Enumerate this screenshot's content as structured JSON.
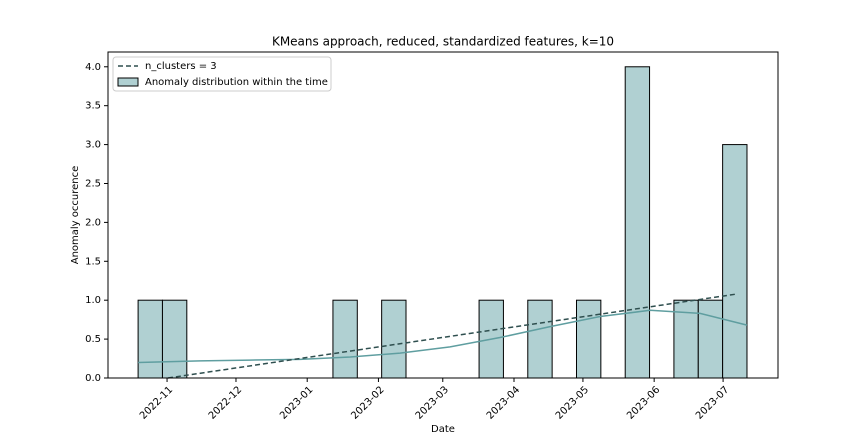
{
  "chart_data": {
    "type": "histogram",
    "title": "KMeans approach, reduced, standardized features, k=10",
    "xlabel": "Date",
    "ylabel": "Anomaly occurence",
    "xlim": [
      19271.3,
      19562.9
    ],
    "ylim": [
      0,
      4.19
    ],
    "xticks": [
      {
        "value": 19297,
        "label": "2022-11"
      },
      {
        "value": 19327,
        "label": "2022-12"
      },
      {
        "value": 19358,
        "label": "2023-01"
      },
      {
        "value": 19389,
        "label": "2023-02"
      },
      {
        "value": 19417,
        "label": "2023-03"
      },
      {
        "value": 19448,
        "label": "2023-04"
      },
      {
        "value": 19478,
        "label": "2023-05"
      },
      {
        "value": 19509,
        "label": "2023-06"
      },
      {
        "value": 19539,
        "label": "2023-07"
      }
    ],
    "yticks": [
      {
        "value": 0,
        "label": "0.0"
      },
      {
        "value": 0.5,
        "label": "0.5"
      },
      {
        "value": 1,
        "label": "1.0"
      },
      {
        "value": 1.5,
        "label": "1.5"
      },
      {
        "value": 2,
        "label": "2.0"
      },
      {
        "value": 2.5,
        "label": "2.5"
      },
      {
        "value": 3,
        "label": "3.0"
      },
      {
        "value": 3.5,
        "label": "3.5"
      },
      {
        "value": 4,
        "label": "4.0"
      }
    ],
    "legend": "upper left",
    "series": [
      {
        "name": "n_clusters = 3",
        "type": "line",
        "color": "#2f4f4f",
        "dashed": true,
        "x": [
          19297.4,
          19545.1
        ],
        "values": [
          0.0,
          1.08
        ]
      },
      {
        "name": "Anomaly distribution within the time",
        "type": "histogram",
        "color": "#b0d0d2",
        "edgecolor": "#000000",
        "bins": [
          19284.4,
          19295.0,
          19305.6,
          19316.2,
          19326.8,
          19337.4,
          19348.0,
          19358.6,
          19369.2,
          19379.8,
          19390.4,
          19401.0,
          19411.6,
          19422.2,
          19432.8,
          19443.4,
          19454.0,
          19464.6,
          19475.2,
          19485.8,
          19496.4,
          19507.0,
          19517.6,
          19528.2,
          19538.8,
          19549.4
        ],
        "values": [
          1,
          1,
          0,
          0,
          0,
          0,
          0,
          0,
          1,
          0,
          1,
          0,
          0,
          0,
          1,
          0,
          1,
          0,
          1,
          0,
          4,
          0,
          1,
          1,
          3
        ],
        "kde": {
          "color": "#5f9ea0",
          "x": [
            19284.4,
            19311.4,
            19333.1,
            19354.9,
            19376.7,
            19398.4,
            19420.2,
            19441.9,
            19463.7,
            19485.5,
            19507.2,
            19529.0,
            19549.4
          ],
          "values": [
            0.2,
            0.22,
            0.23,
            0.24,
            0.27,
            0.32,
            0.4,
            0.52,
            0.66,
            0.79,
            0.87,
            0.83,
            0.68
          ]
        }
      }
    ]
  }
}
